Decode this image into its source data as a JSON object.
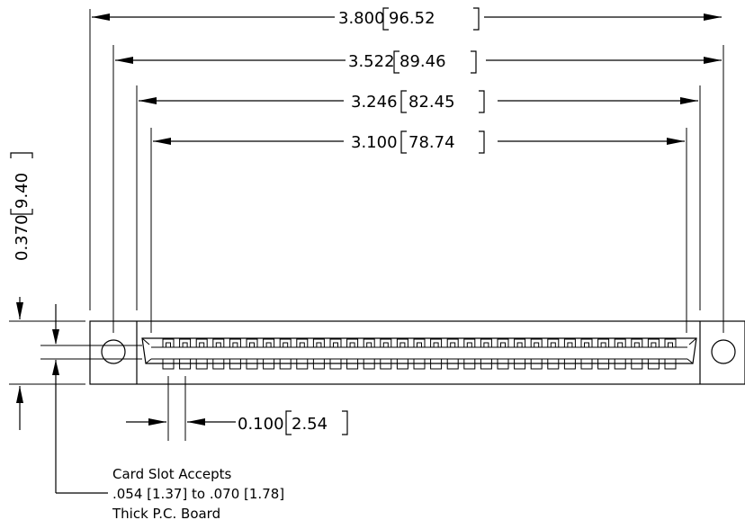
{
  "dimensions": {
    "overall_length": {
      "inch": "3.800",
      "mm": "96.52"
    },
    "mounting_hole_spacing": {
      "inch": "3.522",
      "mm": "89.46"
    },
    "body_length": {
      "inch": "3.246",
      "mm": "82.45"
    },
    "contact_span": {
      "inch": "3.100",
      "mm": "78.74"
    },
    "height": {
      "inch": "0.370",
      "mm": "9.40"
    },
    "contact_pitch": {
      "inch": "0.100",
      "mm": "2.54"
    }
  },
  "note": {
    "line1": "Card Slot Accepts",
    "line2": ".054 [1.37] to .070 [1.78]",
    "line3": "Thick P.C. Board"
  },
  "contacts_per_row": 31
}
